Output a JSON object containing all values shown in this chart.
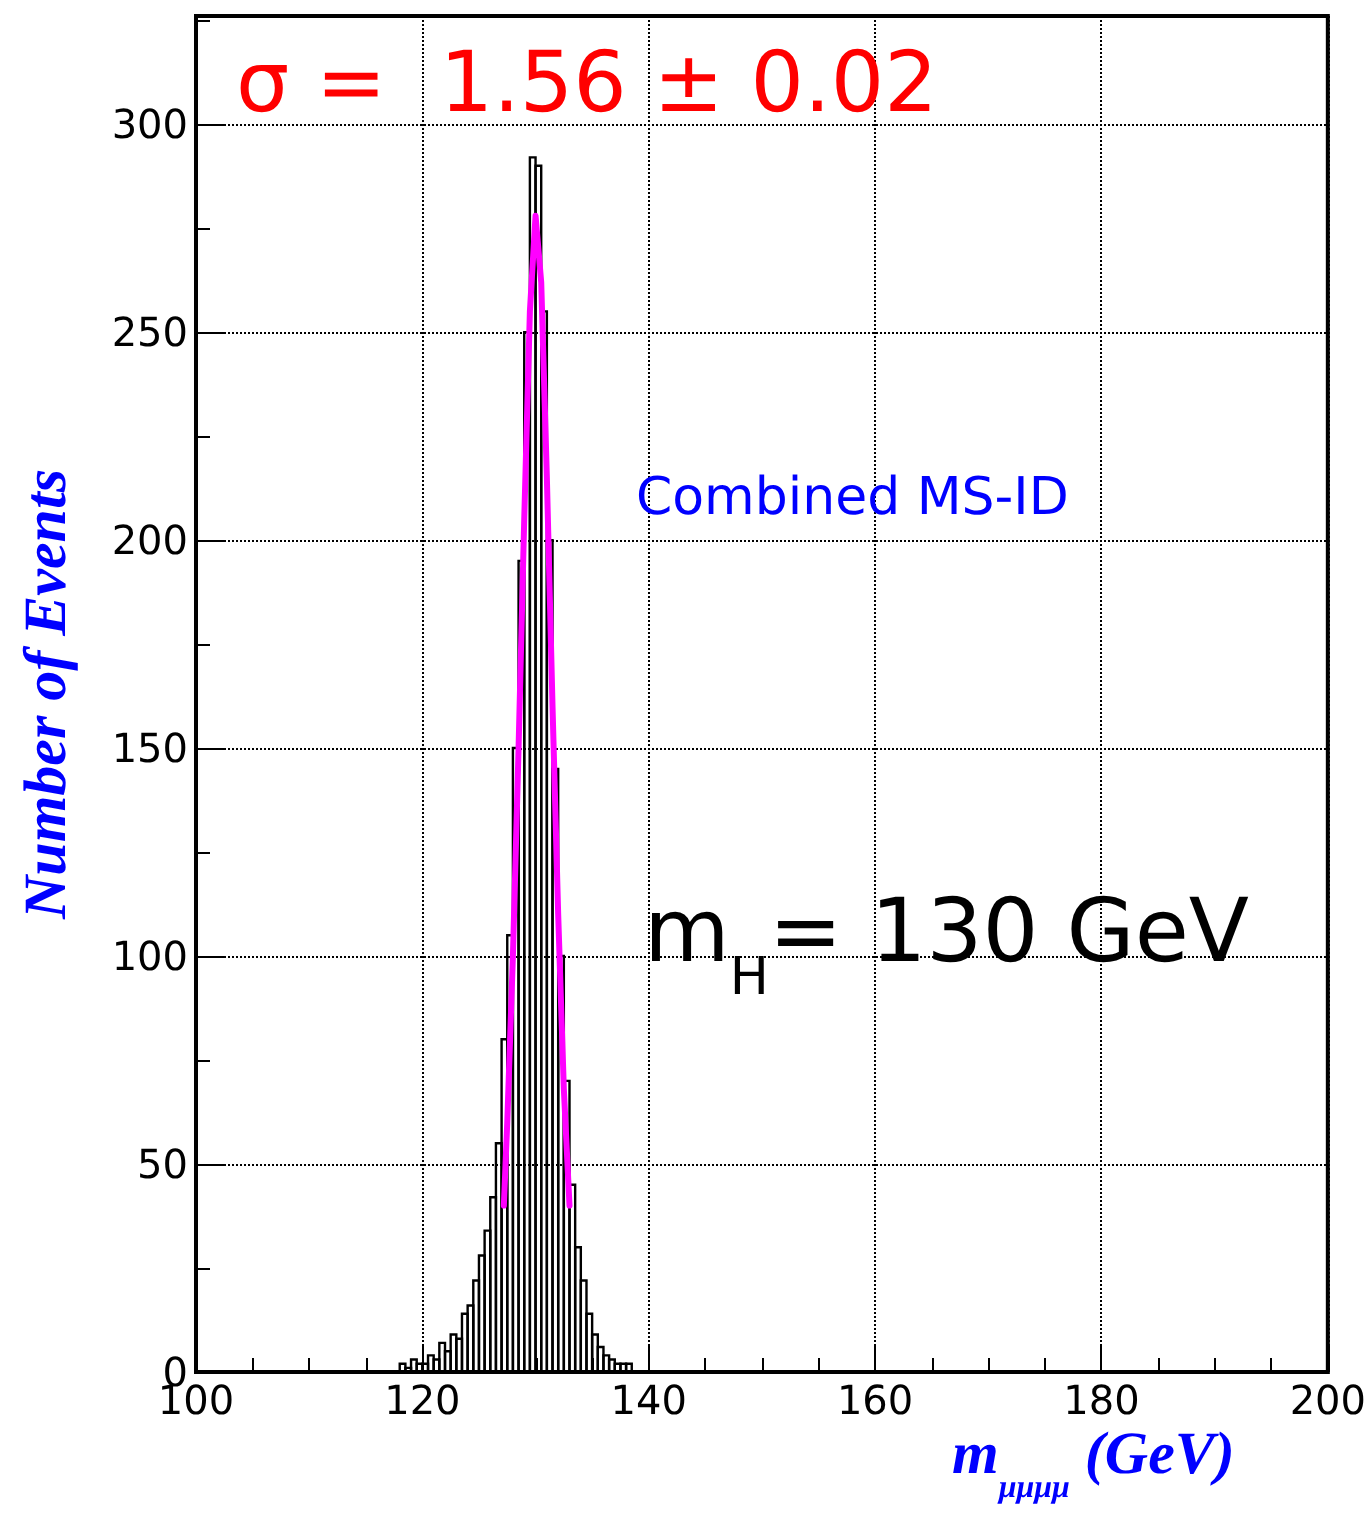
{
  "chart_data": {
    "type": "histogram",
    "xlabel": "m$_{μμμμ}$ (GeV)",
    "ylabel": "Number of Events",
    "annotations": [
      "σ =  1.56 ± 0.02",
      "Combined MS-ID",
      "m$_{H}$= 130 GeV"
    ],
    "bins": [
      118,
      118.5,
      119,
      119.5,
      120,
      120.5,
      121,
      121.5,
      122,
      122.5,
      123,
      123.5,
      124,
      124.5,
      125,
      125.5,
      126,
      126.5,
      127,
      127.5,
      128,
      128.5,
      129,
      129.5,
      130,
      130.5,
      131,
      131.5,
      132,
      132.5,
      133,
      133.5,
      134,
      134.5,
      135,
      135.5,
      136,
      136.5,
      137,
      137.5,
      138,
      138.5
    ],
    "values": [
      2,
      1,
      3,
      2,
      2,
      4,
      3,
      7,
      5,
      9,
      8,
      14,
      16,
      22,
      28,
      34,
      42,
      55,
      80,
      105,
      150,
      195,
      250,
      292,
      290,
      255,
      200,
      145,
      100,
      70,
      45,
      30,
      22,
      14,
      9,
      6,
      4,
      3,
      2,
      2,
      2
    ],
    "color": "#000000",
    "series": [
      {
        "type": "line",
        "color": "#ff00ff",
        "x": [
          127.2,
          127.5,
          128,
          128.5,
          129,
          129.5,
          130,
          130.5,
          131,
          131.5,
          132,
          132.5,
          133
        ],
        "values": [
          40,
          60,
          100,
          150,
          205,
          255,
          278,
          262,
          215,
          160,
          110,
          68,
          40
        ]
      }
    ],
    "xlim": [
      100,
      200
    ],
    "xticks": [
      100,
      120,
      140,
      160,
      180,
      200
    ],
    "ylim": [
      0,
      326
    ],
    "yticks": [
      0,
      50,
      100,
      150,
      200,
      250,
      300
    ],
    "grid": true,
    "marker": "none",
    "line_style": "solid"
  }
}
